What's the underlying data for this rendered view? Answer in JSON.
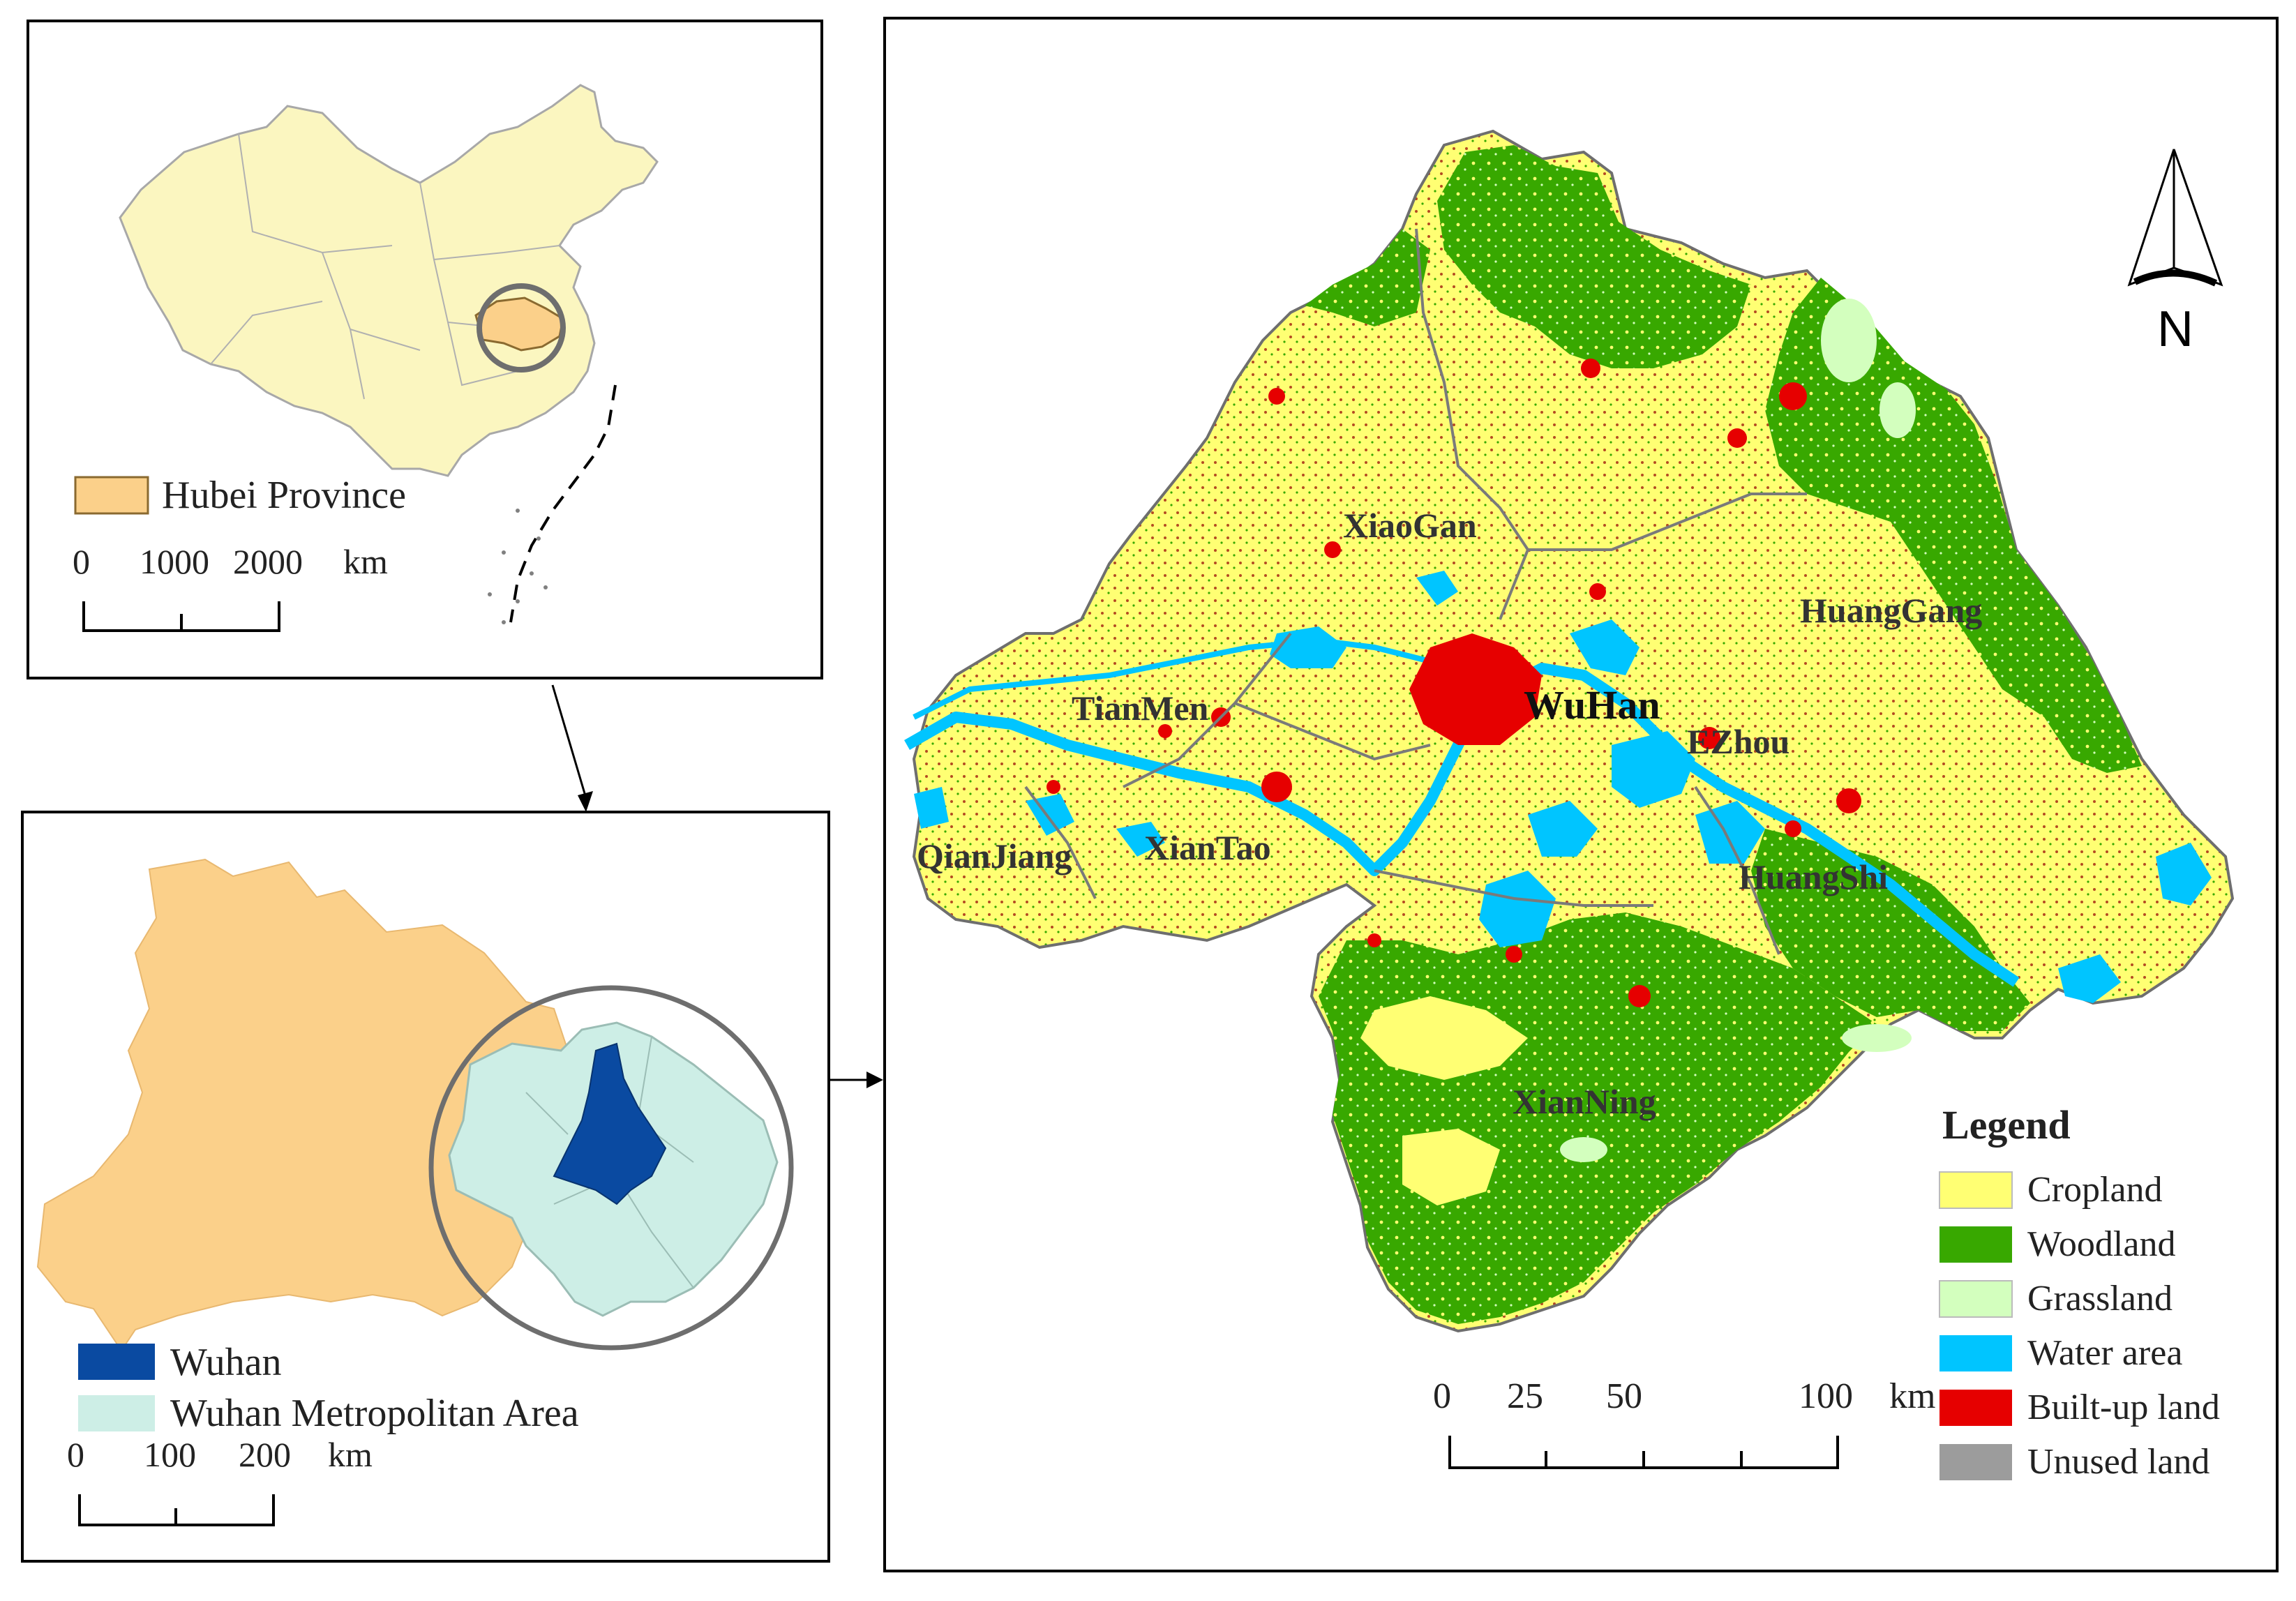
{
  "china_inset": {
    "legend_label": "Hubei Province",
    "scale_labels": [
      "0",
      "1000",
      "2000"
    ],
    "scale_unit": "km"
  },
  "hubei_inset": {
    "legend": [
      {
        "label": "Wuhan",
        "color": "#0a4aa1"
      },
      {
        "label": "Wuhan Metropolitan Area",
        "color": "#cdeee6"
      }
    ],
    "scale_labels": [
      "0",
      "100",
      "200"
    ],
    "scale_unit": "km"
  },
  "main_map": {
    "city_labels": [
      "XiaoGan",
      "HuangGang",
      "WuHan",
      "TianMen",
      "EZhou",
      "XianTao",
      "QianJiang",
      "HuangShi",
      "XianNing"
    ],
    "north_label": "N",
    "scale_labels": [
      "0",
      "25",
      "50",
      "100"
    ],
    "scale_unit": "km",
    "legend_title": "Legend",
    "legend": [
      {
        "label": "Cropland",
        "color": "#ffff73"
      },
      {
        "label": "Woodland",
        "color": "#38a800"
      },
      {
        "label": "Grassland",
        "color": "#d3ffbe"
      },
      {
        "label": "Water area",
        "color": "#00c5ff"
      },
      {
        "label": "Built-up land",
        "color": "#e60000"
      },
      {
        "label": "Unused land",
        "color": "#9c9c9c"
      }
    ]
  },
  "colors": {
    "china_fill": "#fbf6c0",
    "hubei_fill": "#fbd08a",
    "metro_fill": "#cdeee6",
    "wuhan_fill": "#0a4aa1",
    "circle_stroke": "#6e6e6e"
  }
}
